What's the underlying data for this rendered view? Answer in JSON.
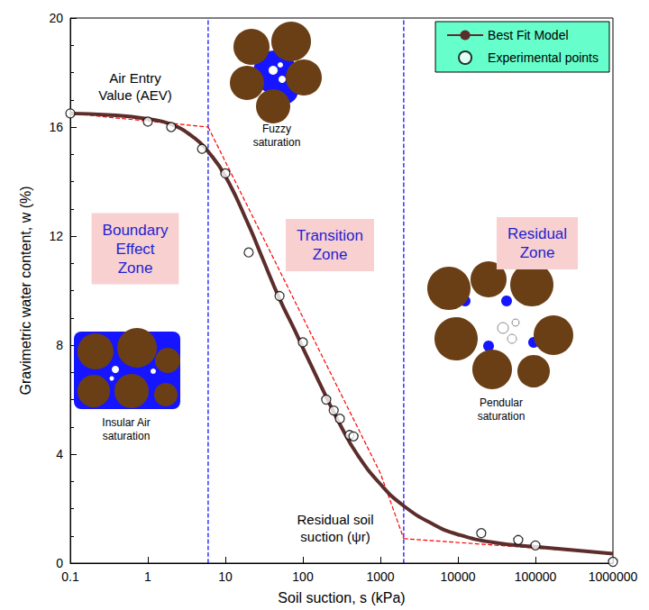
{
  "chart_data": {
    "type": "line",
    "x_label": "Soil suction, s (kPa)",
    "y_label": "Gravimetric water content, w (%)",
    "log": "x",
    "grid": false,
    "legend": "top-right",
    "xlim": [
      0.1,
      1000000
    ],
    "xticks": [
      0.1,
      1,
      10,
      100,
      1000,
      10000,
      100000,
      1000000
    ],
    "ylim": [
      0,
      20
    ],
    "yticks": [
      0,
      4,
      8,
      12,
      16,
      20
    ],
    "series": [
      {
        "name": "Best Fit Model",
        "type": "line",
        "color": "#5c2d2a",
        "marker": "none",
        "line_style": "solid",
        "x": [
          0.1,
          0.3,
          1,
          2,
          4,
          6,
          10,
          20,
          30,
          50,
          80,
          100,
          200,
          300,
          500,
          1000,
          2000,
          5000,
          10000,
          30000,
          100000,
          1000000
        ],
        "values": [
          16.5,
          16.45,
          16.3,
          16.1,
          15.6,
          15.1,
          14.2,
          12.4,
          11.2,
          9.7,
          8.5,
          7.9,
          6.1,
          5.1,
          4.0,
          2.9,
          2.1,
          1.4,
          1.05,
          0.75,
          0.6,
          0.35
        ]
      },
      {
        "name": "Experimental points",
        "type": "scatter",
        "color": "#000000",
        "marker": "open-circle",
        "x": [
          0.1,
          1,
          2,
          5,
          10,
          20,
          50,
          100,
          200,
          250,
          300,
          400,
          450,
          20000,
          60000,
          100000,
          1000000
        ],
        "values": [
          16.5,
          16.2,
          16.0,
          15.2,
          14.3,
          11.4,
          9.8,
          8.1,
          6.0,
          5.6,
          5.3,
          4.7,
          4.65,
          1.1,
          0.85,
          0.65,
          0.05
        ]
      }
    ],
    "tangent_lines": [
      {
        "color": "#ff0000",
        "line_style": "dashed",
        "x": [
          0.1,
          6
        ],
        "values": [
          16.5,
          16.0
        ]
      },
      {
        "color": "#ff0000",
        "line_style": "dashed",
        "x": [
          6,
          1000,
          2000
        ],
        "values": [
          16.0,
          3.3,
          0.9
        ]
      },
      {
        "color": "#ff0000",
        "line_style": "dashed",
        "x": [
          2000,
          1000000
        ],
        "values": [
          0.9,
          0.35
        ]
      }
    ],
    "zone_boundaries": [
      {
        "x": 6,
        "color": "#0000ff",
        "line_style": "dashed"
      },
      {
        "x": 2000,
        "color": "#0000ff",
        "line_style": "dashed"
      }
    ],
    "annotations": {
      "aev": "Air Entry\nValue (AEV)",
      "fuzzy": "Fuzzy\nsaturation",
      "boundary_zone": "Boundary\nEffect\nZone",
      "transition_zone": "Transition\nZone",
      "residual_zone": "Residual\nZone",
      "insular": "Insular Air\nsaturation",
      "pendular": "Pendular\nsaturation",
      "residual_suction": "Residual soil\nsuction (ψr)"
    }
  }
}
